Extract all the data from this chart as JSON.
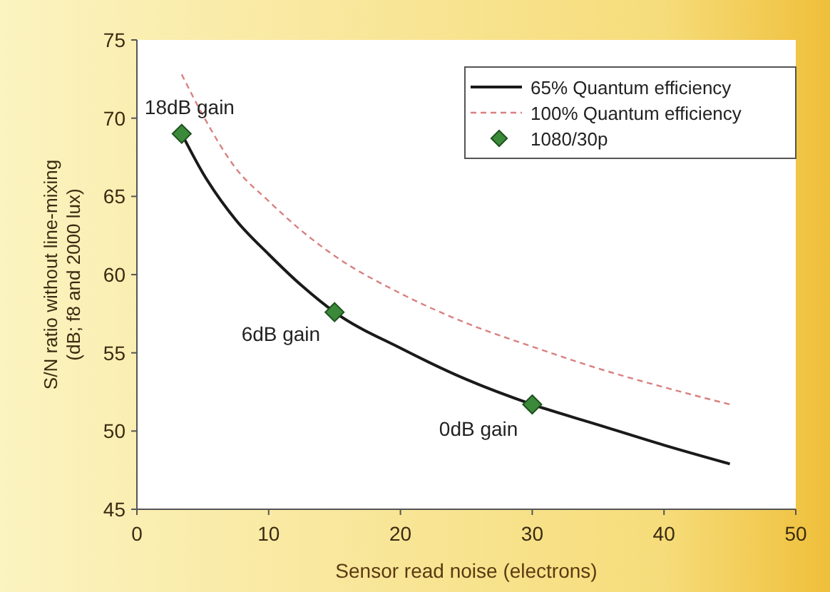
{
  "chart_data": {
    "type": "line",
    "xlabel": "Sensor read noise (electrons)",
    "ylabel": "S/N ratio without line-mixing\n(dB; f8 and 2000 lux)",
    "xlim": [
      0,
      50
    ],
    "xticks": [
      0,
      10,
      20,
      30,
      40,
      50
    ],
    "ylim": [
      45,
      75
    ],
    "yticks": [
      45,
      50,
      55,
      60,
      65,
      70,
      75
    ],
    "grid": false,
    "legend": "top right",
    "series": [
      {
        "name": "65% Quantum efficiency",
        "color": "#1a1a1a",
        "line_style": "solid",
        "marker": "none",
        "x": [
          3.4,
          5,
          7.5,
          10,
          12.5,
          15,
          20,
          25,
          30,
          35,
          40,
          45
        ],
        "values": [
          69,
          66.5,
          63.5,
          61.3,
          59.3,
          57.6,
          55.3,
          53.3,
          51.7,
          50.4,
          49.1,
          47.9
        ]
      },
      {
        "name": "100% Quantum efficiency",
        "color": "#d98080",
        "line_style": "dashed",
        "marker": "none",
        "x": [
          3.4,
          5,
          7.5,
          10,
          12.5,
          15,
          20,
          25,
          30,
          35,
          40,
          45
        ],
        "values": [
          72.8,
          70.2,
          66.8,
          64.7,
          62.8,
          61.2,
          58.8,
          56.9,
          55.4,
          54,
          52.8,
          51.7
        ]
      },
      {
        "name": "1080/30p",
        "type": "scatter",
        "color": "#3a8a3a",
        "marker": "diamond",
        "x": [
          3.4,
          15,
          30
        ],
        "values": [
          69,
          57.6,
          51.7
        ]
      }
    ],
    "annotations": [
      {
        "text": "18dB gain",
        "x": 3.4,
        "y": 69
      },
      {
        "text": "6dB gain",
        "x": 15,
        "y": 57.6
      },
      {
        "text": "0dB gain",
        "x": 30,
        "y": 51.7
      }
    ]
  }
}
